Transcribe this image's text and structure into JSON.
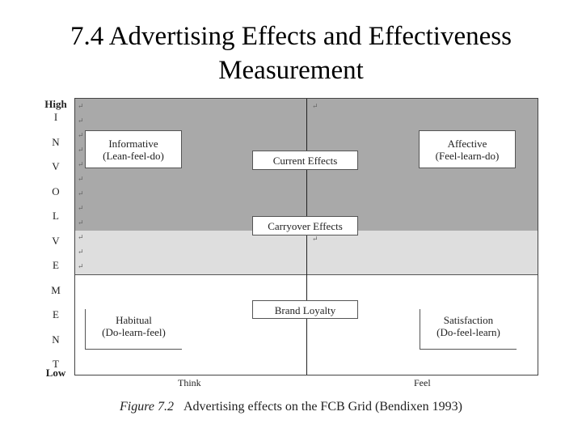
{
  "slide": {
    "title_line1": "7.4 Advertising Effects and Effectiveness",
    "title_line2": "Measurement"
  },
  "y_axis": {
    "top": "High",
    "letters": [
      "I",
      "N",
      "V",
      "O",
      "L",
      "V",
      "E",
      "M",
      "E",
      "N",
      "T"
    ],
    "bottom": "Low"
  },
  "x_axis": {
    "left": "Think",
    "right": "Feel"
  },
  "quadrants": {
    "informative": {
      "name": "Informative",
      "sequence": "(Lean-feel-do)"
    },
    "affective": {
      "name": "Affective",
      "sequence": "(Feel-learn-do)"
    },
    "habitual": {
      "name": "Habitual",
      "sequence": "(Do-learn-feel)"
    },
    "satisfaction": {
      "name": "Satisfaction",
      "sequence": "(Do-feel-learn)"
    }
  },
  "center_labels": {
    "current": "Current Effects",
    "carryover": "Carryover Effects",
    "loyalty": "Brand Loyalty"
  },
  "paragraph_mark": "↵",
  "caption": {
    "figure": "Figure 7.2",
    "text": "Advertising effects on the FCB Grid (Bendixen 1993)"
  }
}
